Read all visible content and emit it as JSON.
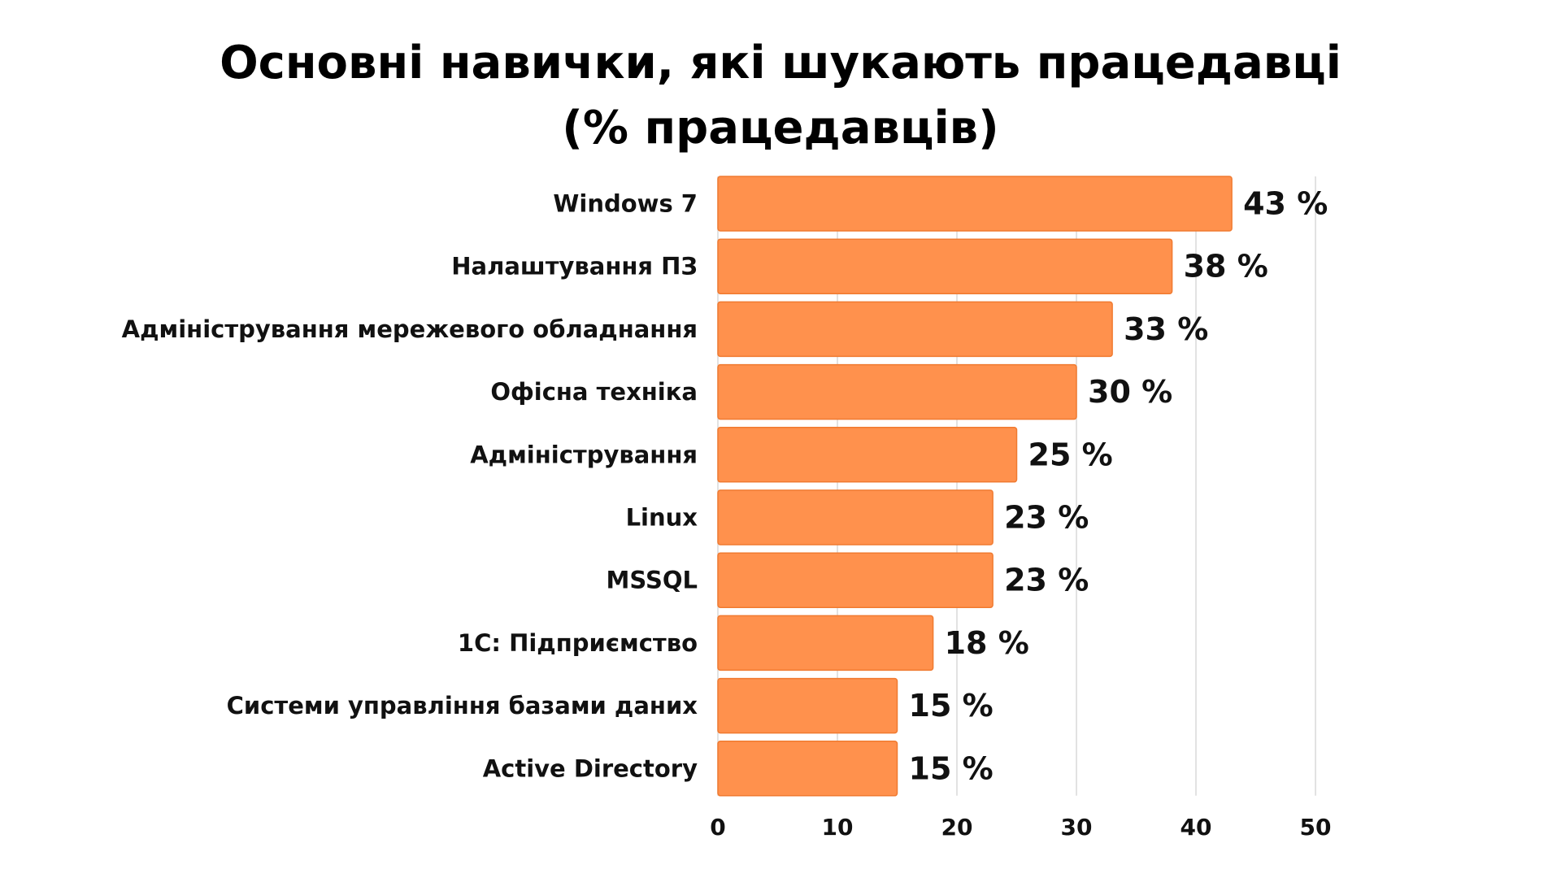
{
  "chart_data": {
    "type": "bar",
    "orientation": "horizontal",
    "title_lines": [
      "Основні навички, які шукають працедавці",
      "(% працедавців)"
    ],
    "categories": [
      "Windows 7",
      "Налаштування ПЗ",
      "Адміністрування мережевого обладнання",
      "Офісна техніка",
      "Адміністрування",
      "Linux",
      "MSSQL",
      "1С: Підприємство",
      "Системи управління базами даних",
      "Active Directory"
    ],
    "values": [
      43,
      38,
      33,
      30,
      25,
      23,
      23,
      18,
      15,
      15
    ],
    "value_labels": [
      "43 %",
      "38 %",
      "33 %",
      "30 %",
      "25 %",
      "23 %",
      "23 %",
      "18 %",
      "15 %",
      "15 %"
    ],
    "xlim": [
      0,
      50
    ],
    "xticks": [
      0,
      10,
      20,
      30,
      40,
      50
    ],
    "grid": "vertical",
    "legend": "none",
    "bar_color": "#FF914D",
    "bar_border_color": "#F07A30",
    "grid_color": "#D9D9D9"
  }
}
